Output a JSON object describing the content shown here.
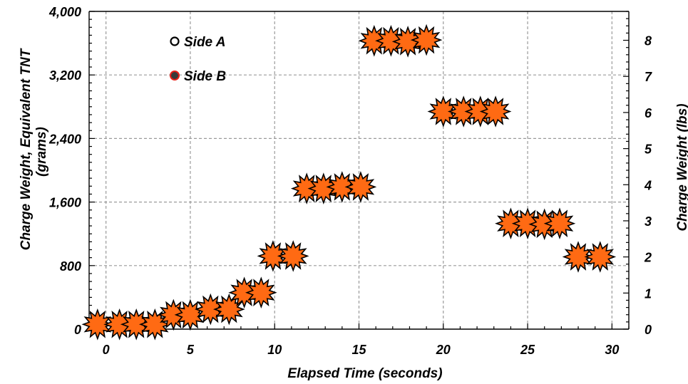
{
  "chart_data": {
    "type": "scatter",
    "title": "",
    "xlabel": "Elapsed Time (seconds)",
    "ylabel_left_line1": "Charge Weight, Equivalent TNT",
    "ylabel_left_line2": "(grams)",
    "ylabel_right": "Charge Weight (lbs)",
    "xlim": [
      -1,
      31
    ],
    "ylim_left": [
      0,
      4000
    ],
    "ylim_right": [
      0,
      8.8
    ],
    "x_ticks": [
      0,
      5,
      10,
      15,
      20,
      25,
      30
    ],
    "x_tick_labels": [
      "0",
      "5",
      "10",
      "15",
      "20",
      "25",
      "30"
    ],
    "y_left_ticks": [
      0,
      800,
      1600,
      2400,
      3200,
      4000
    ],
    "y_left_tick_labels": [
      "0",
      "800",
      "1,600",
      "2,400",
      "3,200",
      "4,000"
    ],
    "y_right_ticks": [
      0,
      1,
      2,
      3,
      4,
      5,
      6,
      7,
      8
    ],
    "y_right_tick_labels": [
      "0",
      "1",
      "2",
      "3",
      "4",
      "5",
      "6",
      "7",
      "8"
    ],
    "grid": true,
    "legend_position": "top-left",
    "legend": [
      {
        "name": "Side A",
        "marker": "open-circle"
      },
      {
        "name": "Side B",
        "marker": "filled-circle"
      }
    ],
    "marker_color": "#FF6A13",
    "marker_edge_color": "#000000",
    "legend_b_fill": "#3a3a3a",
    "legend_b_edge": "#e8221a",
    "grid_color": "#9a9a9a",
    "series": [
      {
        "name": "Charge Weight",
        "points": [
          {
            "x": -0.5,
            "y": 60
          },
          {
            "x": 0.8,
            "y": 60
          },
          {
            "x": 1.8,
            "y": 60
          },
          {
            "x": 2.9,
            "y": 60
          },
          {
            "x": 4.0,
            "y": 180
          },
          {
            "x": 5.0,
            "y": 180
          },
          {
            "x": 6.2,
            "y": 250
          },
          {
            "x": 7.3,
            "y": 250
          },
          {
            "x": 8.2,
            "y": 460
          },
          {
            "x": 9.2,
            "y": 460
          },
          {
            "x": 9.9,
            "y": 920
          },
          {
            "x": 11.1,
            "y": 920
          },
          {
            "x": 11.9,
            "y": 1770
          },
          {
            "x": 12.9,
            "y": 1770
          },
          {
            "x": 14.0,
            "y": 1790
          },
          {
            "x": 15.1,
            "y": 1790
          },
          {
            "x": 15.9,
            "y": 3630
          },
          {
            "x": 16.9,
            "y": 3630
          },
          {
            "x": 17.9,
            "y": 3620
          },
          {
            "x": 19.0,
            "y": 3640
          },
          {
            "x": 20.0,
            "y": 2740
          },
          {
            "x": 21.2,
            "y": 2740
          },
          {
            "x": 22.2,
            "y": 2740
          },
          {
            "x": 23.1,
            "y": 2740
          },
          {
            "x": 24.0,
            "y": 1330
          },
          {
            "x": 25.0,
            "y": 1330
          },
          {
            "x": 26.0,
            "y": 1320
          },
          {
            "x": 26.9,
            "y": 1330
          },
          {
            "x": 28.0,
            "y": 910
          },
          {
            "x": 29.3,
            "y": 910
          }
        ]
      }
    ]
  }
}
